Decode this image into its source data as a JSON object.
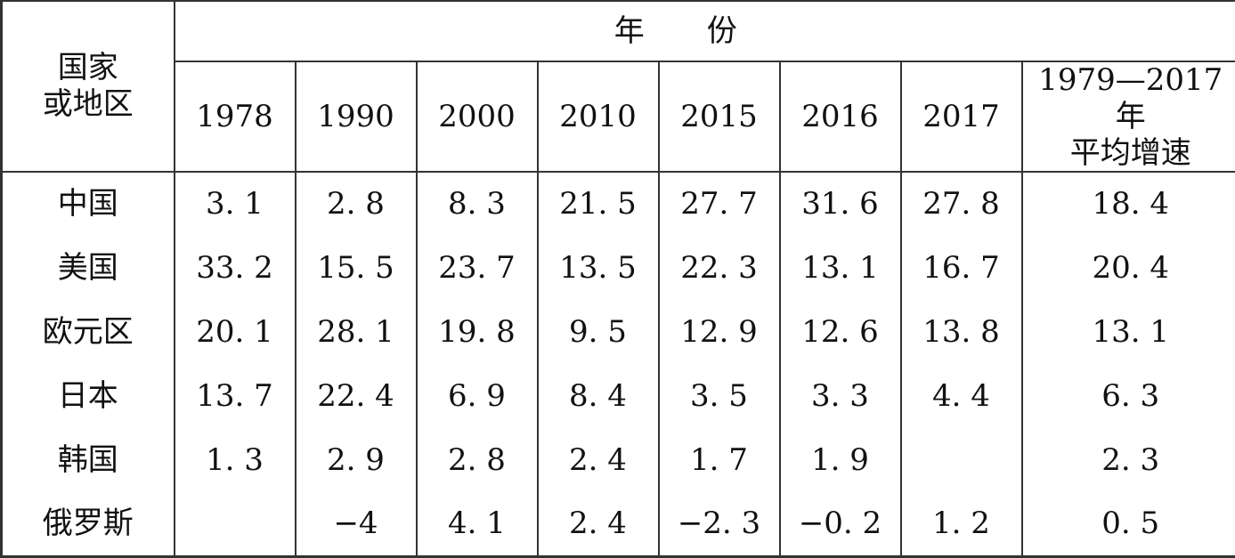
{
  "table": {
    "region_header_line1": "国家",
    "region_header_line2": "或地区",
    "years_group_header": "年份",
    "year_columns": [
      "1978",
      "1990",
      "2000",
      "2010",
      "2015",
      "2016",
      "2017"
    ],
    "average_header_line1": "1979—2017 年",
    "average_header_line2": "平均增速",
    "rows": [
      {
        "region": "中国",
        "values": [
          "3. 1",
          "2. 8",
          "8. 3",
          "21. 5",
          "27. 7",
          "31. 6",
          "27. 8"
        ],
        "average": "18. 4"
      },
      {
        "region": "美国",
        "values": [
          "33. 2",
          "15. 5",
          "23. 7",
          "13. 5",
          "22. 3",
          "13. 1",
          "16. 7"
        ],
        "average": "20. 4"
      },
      {
        "region": "欧元区",
        "values": [
          "20. 1",
          "28. 1",
          "19. 8",
          "9. 5",
          "12. 9",
          "12. 6",
          "13. 8"
        ],
        "average": "13. 1"
      },
      {
        "region": "日本",
        "values": [
          "13. 7",
          "22. 4",
          "6. 9",
          "8. 4",
          "3. 5",
          "3. 3",
          "4. 4"
        ],
        "average": "6. 3"
      },
      {
        "region": "韩国",
        "values": [
          "1. 3",
          "2. 9",
          "2. 8",
          "2. 4",
          "1. 7",
          "1. 9",
          ""
        ],
        "average": "2. 3"
      },
      {
        "region": "俄罗斯",
        "values": [
          "",
          "−4",
          "4. 1",
          "2. 4",
          "−2. 3",
          "−0. 2",
          "1. 2"
        ],
        "average": "0. 5"
      }
    ]
  }
}
